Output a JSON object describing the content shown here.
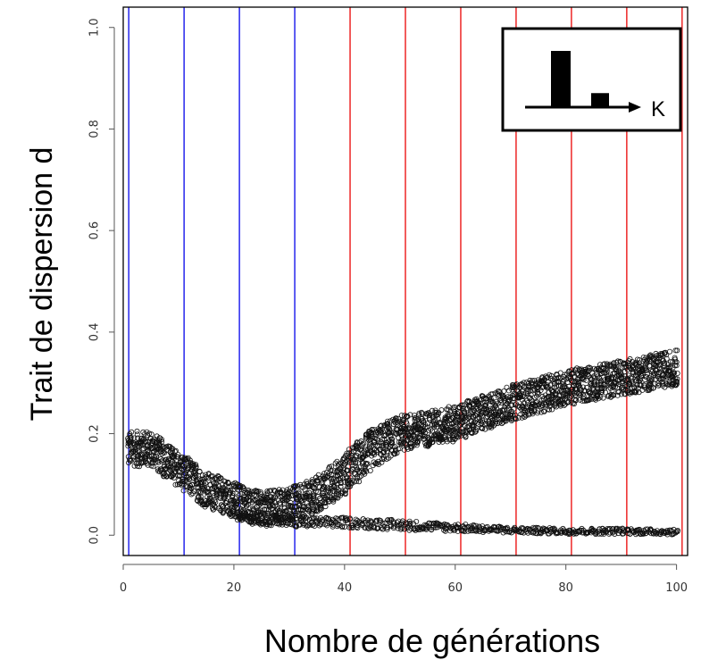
{
  "chart_data": {
    "type": "scatter",
    "title": "",
    "xlabel": "Nombre de générations",
    "ylabel": "Trait de dispersion d",
    "xlim": [
      0,
      102
    ],
    "ylim": [
      -0.04,
      1.04
    ],
    "x_ticks": [
      0,
      20,
      40,
      60,
      80,
      100
    ],
    "x_tick_labels": [
      "0",
      "20",
      "40",
      "60",
      "80",
      "100"
    ],
    "y_ticks": [
      0.0,
      0.2,
      0.4,
      0.6,
      0.8,
      1.0
    ],
    "y_tick_labels": [
      "0.0",
      "0.2",
      "0.4",
      "0.6",
      "0.8",
      "1.0"
    ],
    "grid": false,
    "vertical_lines": {
      "blue": [
        1,
        11,
        21,
        31
      ],
      "red": [
        41,
        51,
        61,
        71,
        81,
        91,
        101
      ]
    },
    "series": [
      {
        "description_ref": "upper",
        "trend": [
          {
            "x": 1,
            "y": 0.17,
            "spread": 0.035
          },
          {
            "x": 5,
            "y": 0.17,
            "spread": 0.035
          },
          {
            "x": 10,
            "y": 0.13,
            "spread": 0.035
          },
          {
            "x": 15,
            "y": 0.09,
            "spread": 0.035
          },
          {
            "x": 20,
            "y": 0.07,
            "spread": 0.035
          },
          {
            "x": 25,
            "y": 0.05,
            "spread": 0.035
          },
          {
            "x": 30,
            "y": 0.06,
            "spread": 0.035
          },
          {
            "x": 35,
            "y": 0.08,
            "spread": 0.035
          },
          {
            "x": 40,
            "y": 0.12,
            "spread": 0.04
          },
          {
            "x": 45,
            "y": 0.17,
            "spread": 0.04
          },
          {
            "x": 50,
            "y": 0.2,
            "spread": 0.035
          },
          {
            "x": 60,
            "y": 0.22,
            "spread": 0.035
          },
          {
            "x": 70,
            "y": 0.26,
            "spread": 0.035
          },
          {
            "x": 80,
            "y": 0.29,
            "spread": 0.035
          },
          {
            "x": 90,
            "y": 0.31,
            "spread": 0.035
          },
          {
            "x": 100,
            "y": 0.33,
            "spread": 0.035
          }
        ]
      },
      {
        "description_ref": "lower",
        "trend": [
          {
            "x": 20,
            "y": 0.04,
            "spread": 0.01
          },
          {
            "x": 30,
            "y": 0.025,
            "spread": 0.01
          },
          {
            "x": 40,
            "y": 0.025,
            "spread": 0.01
          },
          {
            "x": 50,
            "y": 0.02,
            "spread": 0.01
          },
          {
            "x": 60,
            "y": 0.015,
            "spread": 0.008
          },
          {
            "x": 70,
            "y": 0.01,
            "spread": 0.006
          },
          {
            "x": 80,
            "y": 0.008,
            "spread": 0.006
          },
          {
            "x": 90,
            "y": 0.008,
            "spread": 0.006
          },
          {
            "x": 100,
            "y": 0.006,
            "spread": 0.005
          }
        ]
      }
    ],
    "inset": {
      "axis_label": "K",
      "bars": [
        1.0,
        0.25
      ]
    }
  }
}
